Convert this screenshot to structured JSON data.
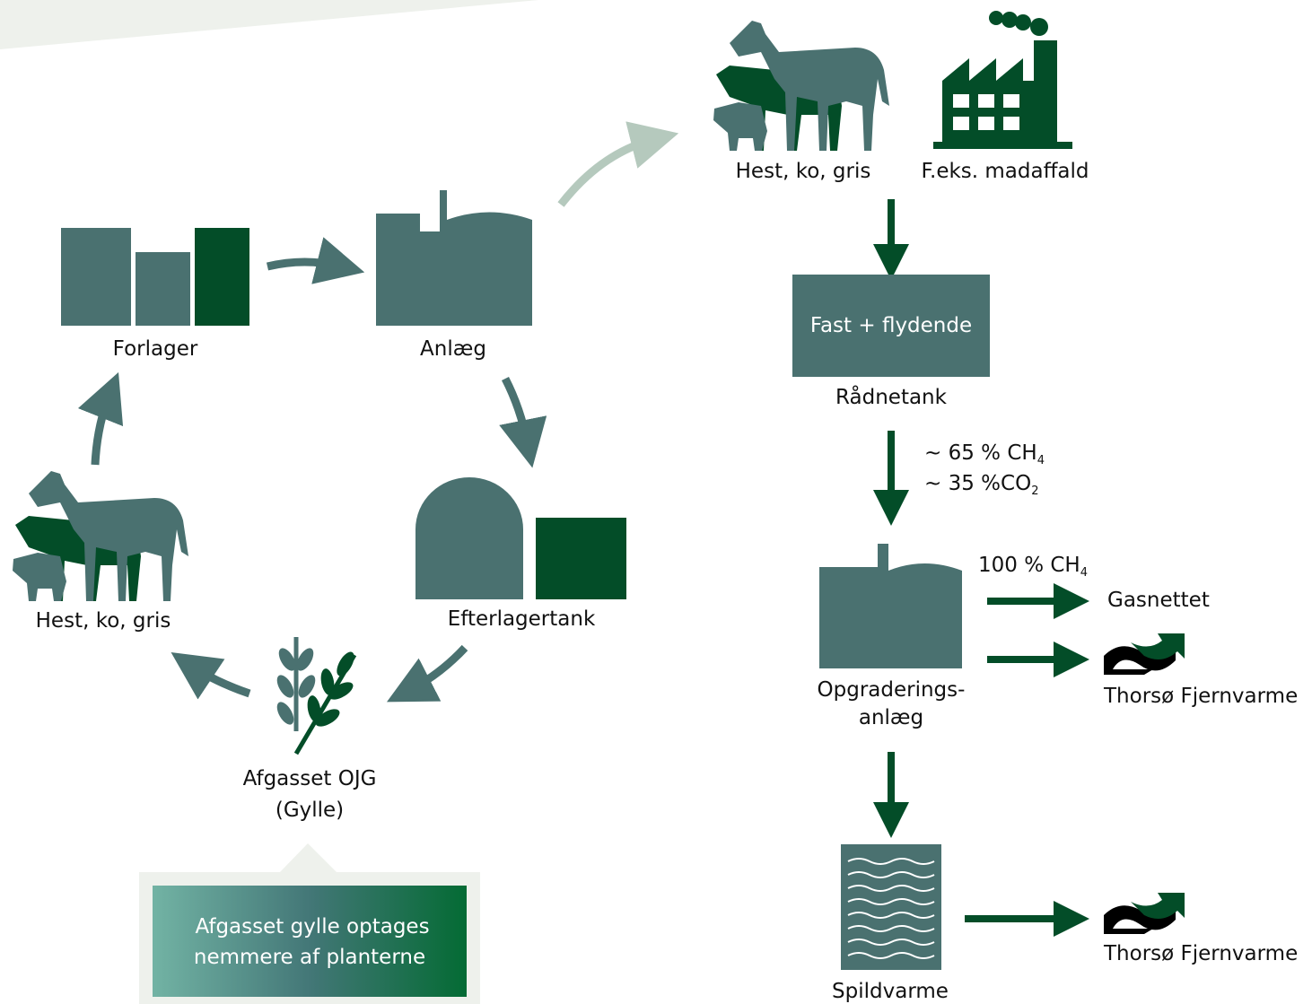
{
  "cycle": {
    "forlager": "Forlager",
    "anlaeg": "Anlæg",
    "efterlagertank": "Efterlagertank",
    "afgasset": [
      "Afgasset OJG",
      "(Gylle)"
    ],
    "animals": "Hest, ko, gris",
    "callout": [
      "Afgasset gylle optages",
      "nemmere af planterne"
    ]
  },
  "process": {
    "inputs": [
      "Hest, ko, gris",
      "F.eks. madaffald"
    ],
    "digester": {
      "box": "Fast + flydende",
      "label": "Rådnetank"
    },
    "gas_mix": [
      {
        "text": "~ 65 % CH",
        "sub": "4"
      },
      {
        "text": "~ 35 %CO",
        "sub": "2"
      }
    ],
    "upgrade": {
      "output": {
        "text": "100 % CH",
        "sub": "4"
      },
      "label": [
        "Opgraderings-",
        "anlæg"
      ],
      "targets": [
        "Gasnettet",
        "Thorsø Fjernvarme"
      ]
    },
    "waste_heat": {
      "label": "Spildvarme",
      "target": "Thorsø Fjernvarme"
    }
  }
}
